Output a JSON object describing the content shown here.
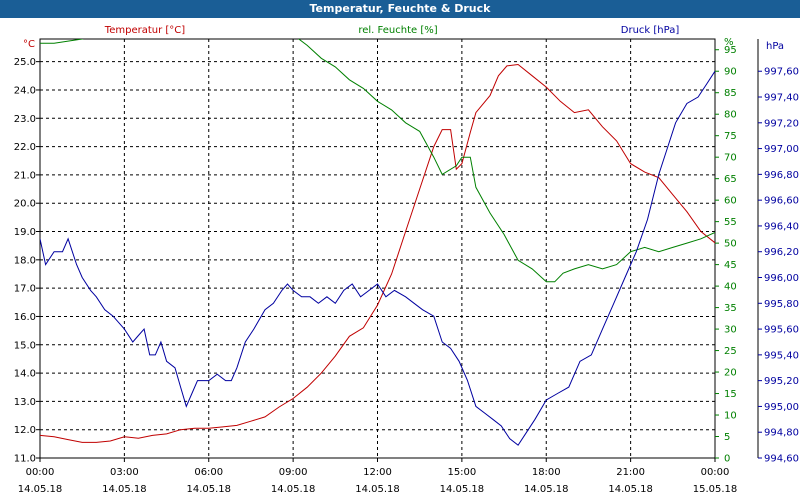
{
  "window": {
    "title": "Temperatur, Feuchte & Druck"
  },
  "chart_data": {
    "type": "line",
    "title": "Temperatur, Feuchte & Druck",
    "grid": true,
    "x_ticks": [
      {
        "h": 0,
        "time": "00:00",
        "date": "14.05.18"
      },
      {
        "h": 3,
        "time": "03:00",
        "date": "14.05.18"
      },
      {
        "h": 6,
        "time": "06:00",
        "date": "14.05.18"
      },
      {
        "h": 9,
        "time": "09:00",
        "date": "14.05.18"
      },
      {
        "h": 12,
        "time": "12:00",
        "date": "14.05.18"
      },
      {
        "h": 15,
        "time": "15:00",
        "date": "14.05.18"
      },
      {
        "h": 18,
        "time": "18:00",
        "date": "14.05.18"
      },
      {
        "h": 21,
        "time": "21:00",
        "date": "14.05.18"
      },
      {
        "h": 24,
        "time": "00:00",
        "date": "15.05.18"
      }
    ],
    "xlim": [
      0,
      24
    ],
    "axes": {
      "temp": {
        "unit": "°C",
        "header": "Temperatur [°C]",
        "color": "#c00000",
        "ylim": [
          11.0,
          25.8
        ],
        "ticks": [
          "11.0",
          "12.0",
          "13.0",
          "14.0",
          "15.0",
          "16.0",
          "17.0",
          "18.0",
          "19.0",
          "20.0",
          "21.0",
          "22.0",
          "23.0",
          "24.0",
          "25.0"
        ]
      },
      "hum": {
        "unit": "%",
        "header": "rel. Feuchte [%]",
        "color": "#008000",
        "ylim": [
          0,
          97.5
        ],
        "ticks": [
          "0",
          "5",
          "10",
          "15",
          "20",
          "25",
          "30",
          "35",
          "40",
          "45",
          "50",
          "55",
          "60",
          "65",
          "70",
          "75",
          "80",
          "85",
          "90",
          "95"
        ]
      },
      "press": {
        "unit": "hPa",
        "header": "Druck [hPa]",
        "color": "#0000a0",
        "ylim": [
          994.6,
          997.85
        ],
        "ticks": [
          "994,60",
          "994,80",
          "995,00",
          "995,20",
          "995,40",
          "995,60",
          "995,80",
          "996,00",
          "996,20",
          "996,40",
          "996,60",
          "996,80",
          "997,00",
          "997,20",
          "997,40",
          "997,60"
        ]
      }
    },
    "series": [
      {
        "name": "Temperatur [°C]",
        "axis": "temp",
        "color": "#c00000",
        "points": [
          [
            0,
            11.8
          ],
          [
            0.5,
            11.75
          ],
          [
            1,
            11.65
          ],
          [
            1.5,
            11.55
          ],
          [
            2,
            11.55
          ],
          [
            2.5,
            11.6
          ],
          [
            3,
            11.75
          ],
          [
            3.5,
            11.7
          ],
          [
            4,
            11.8
          ],
          [
            4.5,
            11.85
          ],
          [
            5,
            12.0
          ],
          [
            5.5,
            12.05
          ],
          [
            6,
            12.05
          ],
          [
            6.5,
            12.1
          ],
          [
            7,
            12.15
          ],
          [
            7.5,
            12.3
          ],
          [
            8,
            12.45
          ],
          [
            8.5,
            12.8
          ],
          [
            9,
            13.1
          ],
          [
            9.5,
            13.5
          ],
          [
            10,
            14.0
          ],
          [
            10.5,
            14.6
          ],
          [
            11,
            15.3
          ],
          [
            11.5,
            15.6
          ],
          [
            12,
            16.4
          ],
          [
            12.5,
            17.5
          ],
          [
            13,
            19.0
          ],
          [
            13.5,
            20.5
          ],
          [
            14,
            22.0
          ],
          [
            14.3,
            22.6
          ],
          [
            14.6,
            22.6
          ],
          [
            14.8,
            21.2
          ],
          [
            15,
            21.4
          ],
          [
            15.3,
            22.5
          ],
          [
            15.5,
            23.2
          ],
          [
            16,
            23.8
          ],
          [
            16.3,
            24.5
          ],
          [
            16.6,
            24.85
          ],
          [
            17,
            24.9
          ],
          [
            17.5,
            24.5
          ],
          [
            18,
            24.1
          ],
          [
            18.5,
            23.6
          ],
          [
            19,
            23.2
          ],
          [
            19.5,
            23.3
          ],
          [
            20,
            22.7
          ],
          [
            20.5,
            22.2
          ],
          [
            21,
            21.4
          ],
          [
            21.5,
            21.1
          ],
          [
            22,
            20.9
          ],
          [
            22.5,
            20.3
          ],
          [
            23,
            19.7
          ],
          [
            23.5,
            19.0
          ],
          [
            24,
            18.6
          ]
        ]
      },
      {
        "name": "rel. Feuchte [%]",
        "axis": "hum",
        "color": "#008000",
        "points": [
          [
            0,
            96.5
          ],
          [
            0.5,
            96.5
          ],
          [
            1,
            97
          ],
          [
            1.5,
            97.5
          ],
          [
            2,
            98.5
          ],
          [
            3,
            98.5
          ],
          [
            6,
            98.5
          ],
          [
            9,
            98.5
          ],
          [
            9.5,
            96
          ],
          [
            10,
            93
          ],
          [
            10.5,
            91
          ],
          [
            11,
            88
          ],
          [
            11.5,
            86
          ],
          [
            12,
            83
          ],
          [
            12.5,
            81
          ],
          [
            13,
            78
          ],
          [
            13.5,
            76
          ],
          [
            14,
            70
          ],
          [
            14.3,
            66
          ],
          [
            14.8,
            68
          ],
          [
            15,
            70
          ],
          [
            15.3,
            70
          ],
          [
            15.5,
            63
          ],
          [
            16,
            57
          ],
          [
            16.5,
            52
          ],
          [
            17,
            46
          ],
          [
            17.5,
            44
          ],
          [
            18,
            41
          ],
          [
            18.3,
            41
          ],
          [
            18.6,
            43
          ],
          [
            19,
            44
          ],
          [
            19.5,
            45
          ],
          [
            20,
            44
          ],
          [
            20.5,
            45
          ],
          [
            21,
            48
          ],
          [
            21.5,
            49
          ],
          [
            22,
            48
          ],
          [
            22.5,
            49
          ],
          [
            23,
            50
          ],
          [
            23.5,
            51
          ],
          [
            24,
            52.5
          ]
        ]
      },
      {
        "name": "Druck [hPa]",
        "axis": "press",
        "color": "#0000a0",
        "points": [
          [
            0,
            996.3
          ],
          [
            0.2,
            996.1
          ],
          [
            0.5,
            996.2
          ],
          [
            0.8,
            996.2
          ],
          [
            1,
            996.3
          ],
          [
            1.3,
            996.1
          ],
          [
            1.5,
            996.0
          ],
          [
            1.8,
            995.9
          ],
          [
            2,
            995.85
          ],
          [
            2.3,
            995.75
          ],
          [
            2.6,
            995.7
          ],
          [
            3,
            995.6
          ],
          [
            3.3,
            995.5
          ],
          [
            3.5,
            995.55
          ],
          [
            3.7,
            995.6
          ],
          [
            3.9,
            995.4
          ],
          [
            4.1,
            995.4
          ],
          [
            4.3,
            995.5
          ],
          [
            4.5,
            995.35
          ],
          [
            4.8,
            995.3
          ],
          [
            5,
            995.15
          ],
          [
            5.2,
            995.0
          ],
          [
            5.4,
            995.1
          ],
          [
            5.6,
            995.2
          ],
          [
            5.8,
            995.2
          ],
          [
            6,
            995.2
          ],
          [
            6.3,
            995.25
          ],
          [
            6.6,
            995.2
          ],
          [
            6.8,
            995.2
          ],
          [
            7,
            995.3
          ],
          [
            7.3,
            995.5
          ],
          [
            7.6,
            995.6
          ],
          [
            8,
            995.75
          ],
          [
            8.3,
            995.8
          ],
          [
            8.6,
            995.9
          ],
          [
            8.8,
            995.95
          ],
          [
            9,
            995.9
          ],
          [
            9.3,
            995.85
          ],
          [
            9.6,
            995.85
          ],
          [
            9.9,
            995.8
          ],
          [
            10.2,
            995.85
          ],
          [
            10.5,
            995.8
          ],
          [
            10.8,
            995.9
          ],
          [
            11.1,
            995.95
          ],
          [
            11.4,
            995.85
          ],
          [
            11.7,
            995.9
          ],
          [
            12,
            995.95
          ],
          [
            12.3,
            995.85
          ],
          [
            12.6,
            995.9
          ],
          [
            13,
            995.85
          ],
          [
            13.3,
            995.8
          ],
          [
            13.6,
            995.75
          ],
          [
            14,
            995.7
          ],
          [
            14.3,
            995.5
          ],
          [
            14.6,
            995.45
          ],
          [
            14.9,
            995.35
          ],
          [
            15.2,
            995.2
          ],
          [
            15.5,
            995.0
          ],
          [
            15.8,
            994.95
          ],
          [
            16.1,
            994.9
          ],
          [
            16.4,
            994.85
          ],
          [
            16.7,
            994.75
          ],
          [
            17,
            994.7
          ],
          [
            17.3,
            994.8
          ],
          [
            17.6,
            994.9
          ],
          [
            18,
            995.05
          ],
          [
            18.4,
            995.1
          ],
          [
            18.8,
            995.15
          ],
          [
            19.2,
            995.35
          ],
          [
            19.6,
            995.4
          ],
          [
            20,
            995.6
          ],
          [
            20.4,
            995.8
          ],
          [
            20.8,
            996.0
          ],
          [
            21.2,
            996.2
          ],
          [
            21.6,
            996.45
          ],
          [
            22,
            996.8
          ],
          [
            22.3,
            997.0
          ],
          [
            22.6,
            997.2
          ],
          [
            23,
            997.35
          ],
          [
            23.4,
            997.4
          ],
          [
            23.7,
            997.5
          ],
          [
            24,
            997.6
          ]
        ]
      }
    ]
  }
}
